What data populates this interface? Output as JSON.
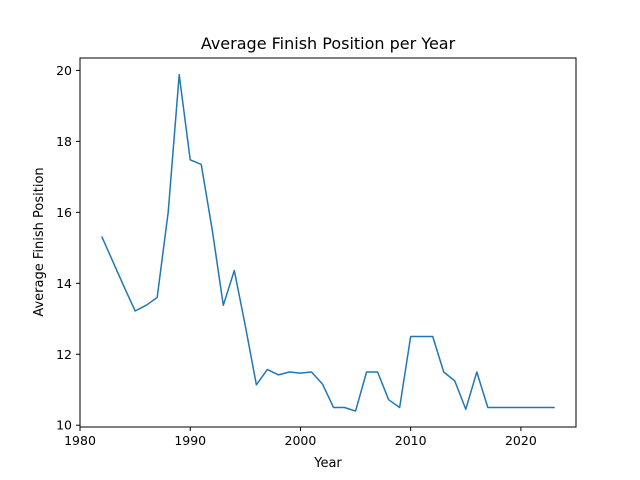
{
  "chart_data": {
    "type": "line",
    "title": "Average Finish Position per Year",
    "xlabel": "Year",
    "ylabel": "Average Finish Position",
    "xlim": [
      1980,
      2025
    ],
    "ylim": [
      9.95,
      20.35
    ],
    "xticks": [
      1980,
      1990,
      2000,
      2010,
      2020
    ],
    "yticks": [
      10,
      12,
      14,
      16,
      18,
      20
    ],
    "grid": false,
    "line_color": "#1f77b4",
    "series": [
      {
        "x": [
          1982,
          1983,
          1984,
          1985,
          1986,
          1987,
          1988,
          1989,
          1990,
          1991,
          1992,
          1993,
          1994,
          1995,
          1996,
          1997,
          1998,
          1999,
          2000,
          2001,
          2002,
          2003,
          2004,
          2005,
          2006,
          2007,
          2008,
          2009,
          2010,
          2011,
          2012,
          2013,
          2014,
          2015,
          2016,
          2017,
          2018,
          2019,
          2020,
          2021,
          2022,
          2023
        ],
        "values": [
          15.3,
          14.6,
          13.9,
          13.22,
          13.38,
          13.6,
          16.0,
          19.88,
          17.48,
          17.35,
          15.5,
          13.38,
          14.36,
          12.8,
          11.14,
          11.57,
          11.42,
          11.5,
          11.47,
          11.5,
          11.16,
          10.5,
          10.5,
          10.4,
          11.5,
          11.5,
          10.72,
          10.5,
          12.5,
          12.5,
          12.5,
          11.5,
          11.25,
          10.45,
          11.5,
          10.5,
          10.5,
          10.5,
          10.5,
          10.5,
          10.5,
          10.5
        ]
      }
    ]
  }
}
